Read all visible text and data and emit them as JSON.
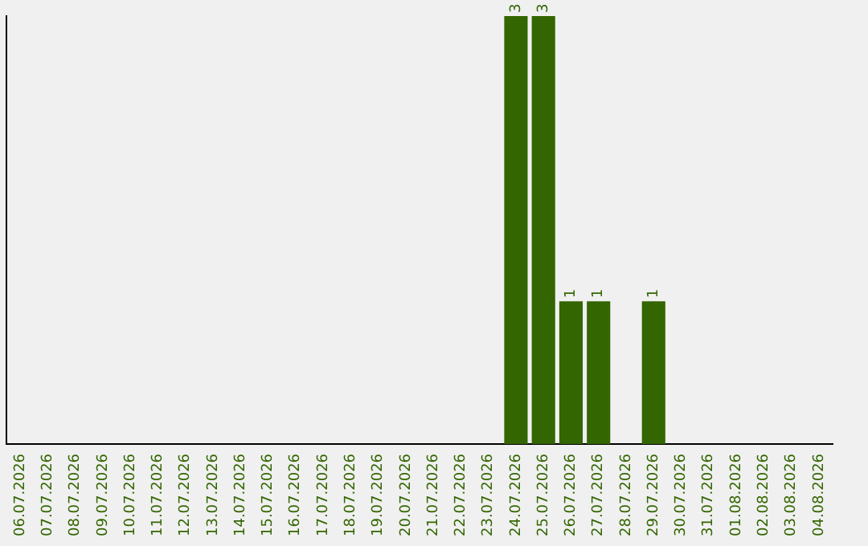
{
  "chart_data": {
    "type": "bar",
    "categories": [
      "06.07.2026",
      "07.07.2026",
      "08.07.2026",
      "09.07.2026",
      "10.07.2026",
      "11.07.2026",
      "12.07.2026",
      "13.07.2026",
      "14.07.2026",
      "15.07.2026",
      "16.07.2026",
      "17.07.2026",
      "18.07.2026",
      "19.07.2026",
      "20.07.2026",
      "21.07.2026",
      "22.07.2026",
      "23.07.2026",
      "24.07.2026",
      "25.07.2026",
      "26.07.2026",
      "27.07.2026",
      "28.07.2026",
      "29.07.2026",
      "30.07.2026",
      "31.07.2026",
      "01.08.2026",
      "02.08.2026",
      "03.08.2026",
      "04.08.2026"
    ],
    "values": [
      null,
      null,
      null,
      null,
      null,
      null,
      null,
      null,
      null,
      null,
      null,
      null,
      null,
      null,
      null,
      null,
      null,
      null,
      3,
      3,
      1,
      1,
      null,
      1,
      null,
      null,
      null,
      null,
      null,
      null
    ],
    "data_labels": true,
    "color": "#336600",
    "tick_labels": "x",
    "grid": false,
    "legend": false
  }
}
